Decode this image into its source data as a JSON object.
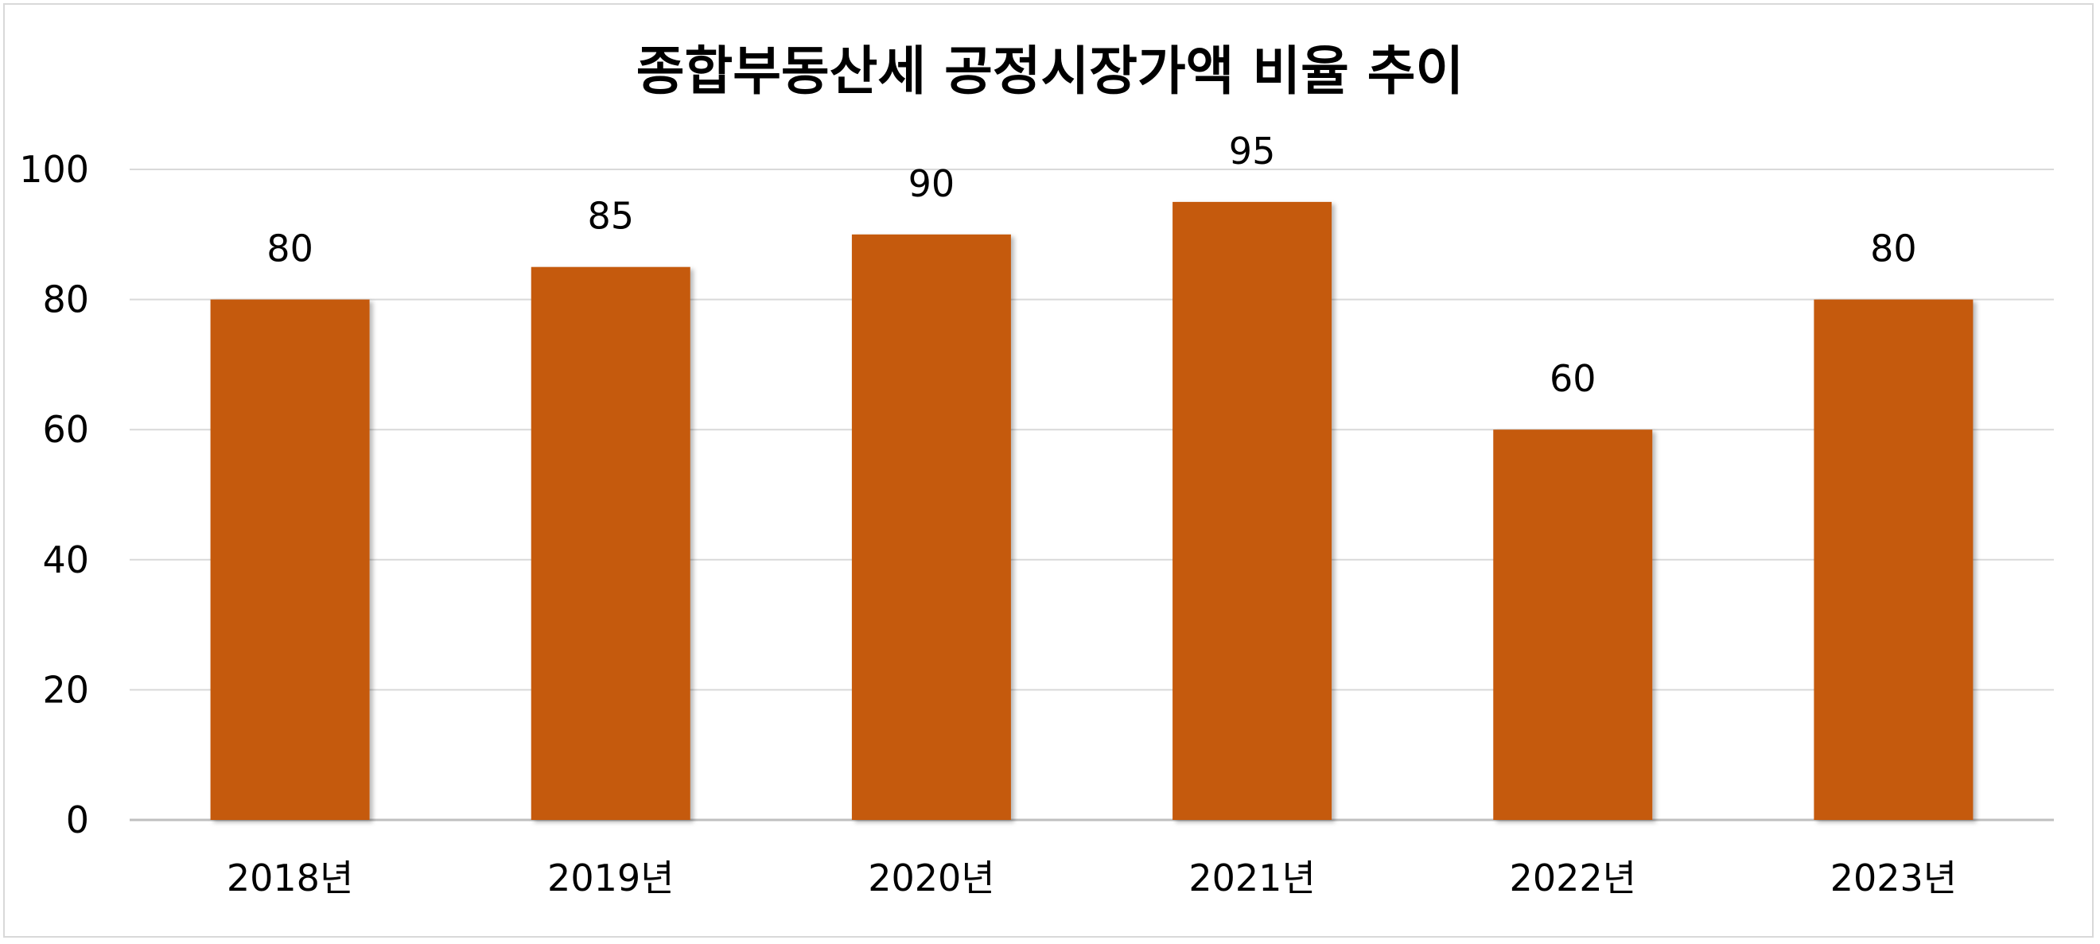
{
  "chart_data": {
    "type": "bar",
    "title": "종합부동산세 공정시장가액 비율 추이",
    "categories": [
      "2018년",
      "2019년",
      "2020년",
      "2021년",
      "2022년",
      "2023년"
    ],
    "values": [
      80,
      85,
      90,
      95,
      60,
      80
    ],
    "data_labels": [
      "80",
      "85",
      "90",
      "95",
      "60",
      "80"
    ],
    "ylim": [
      0,
      100
    ],
    "yticks": [
      0,
      20,
      40,
      60,
      80,
      100
    ],
    "ytick_labels": [
      "0",
      "20",
      "40",
      "60",
      "80",
      "100"
    ],
    "grid": true,
    "legend": "none",
    "bar_color": "#C55A11"
  }
}
